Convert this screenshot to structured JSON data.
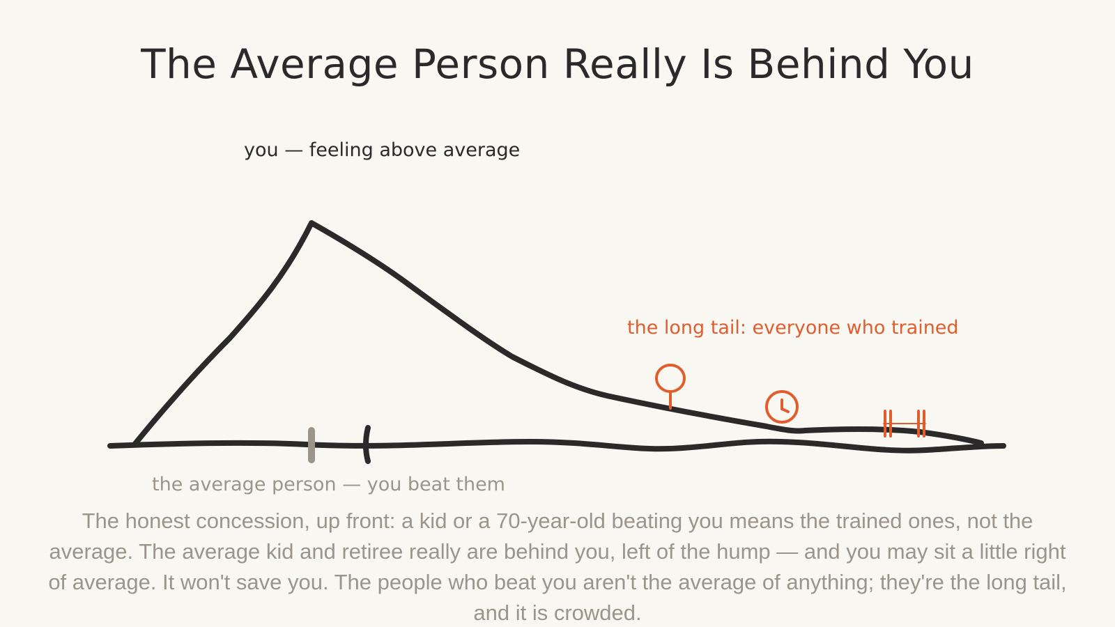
{
  "title": "The Average Person Really Is Behind You",
  "labels": {
    "you": "you — feeling above average",
    "tail": "the long tail: everyone who trained",
    "average": "the average person — you beat them"
  },
  "paragraph": "The honest concession, up front: a kid or a 70-year-old beating you means the trained ones, not the average. The average kid and retiree really are behind you, left of the hump — and you may sit a little right of average. It won't save you. The people who beat you aren't the average of anything; they're the long tail, and it is crowded.",
  "icons": [
    "tennis-racket",
    "stopwatch",
    "barbell"
  ],
  "colors": {
    "ink": "#2a2a2a",
    "accent": "#e05d2e",
    "muted": "#9a958b",
    "background": "#f9f7f1"
  }
}
